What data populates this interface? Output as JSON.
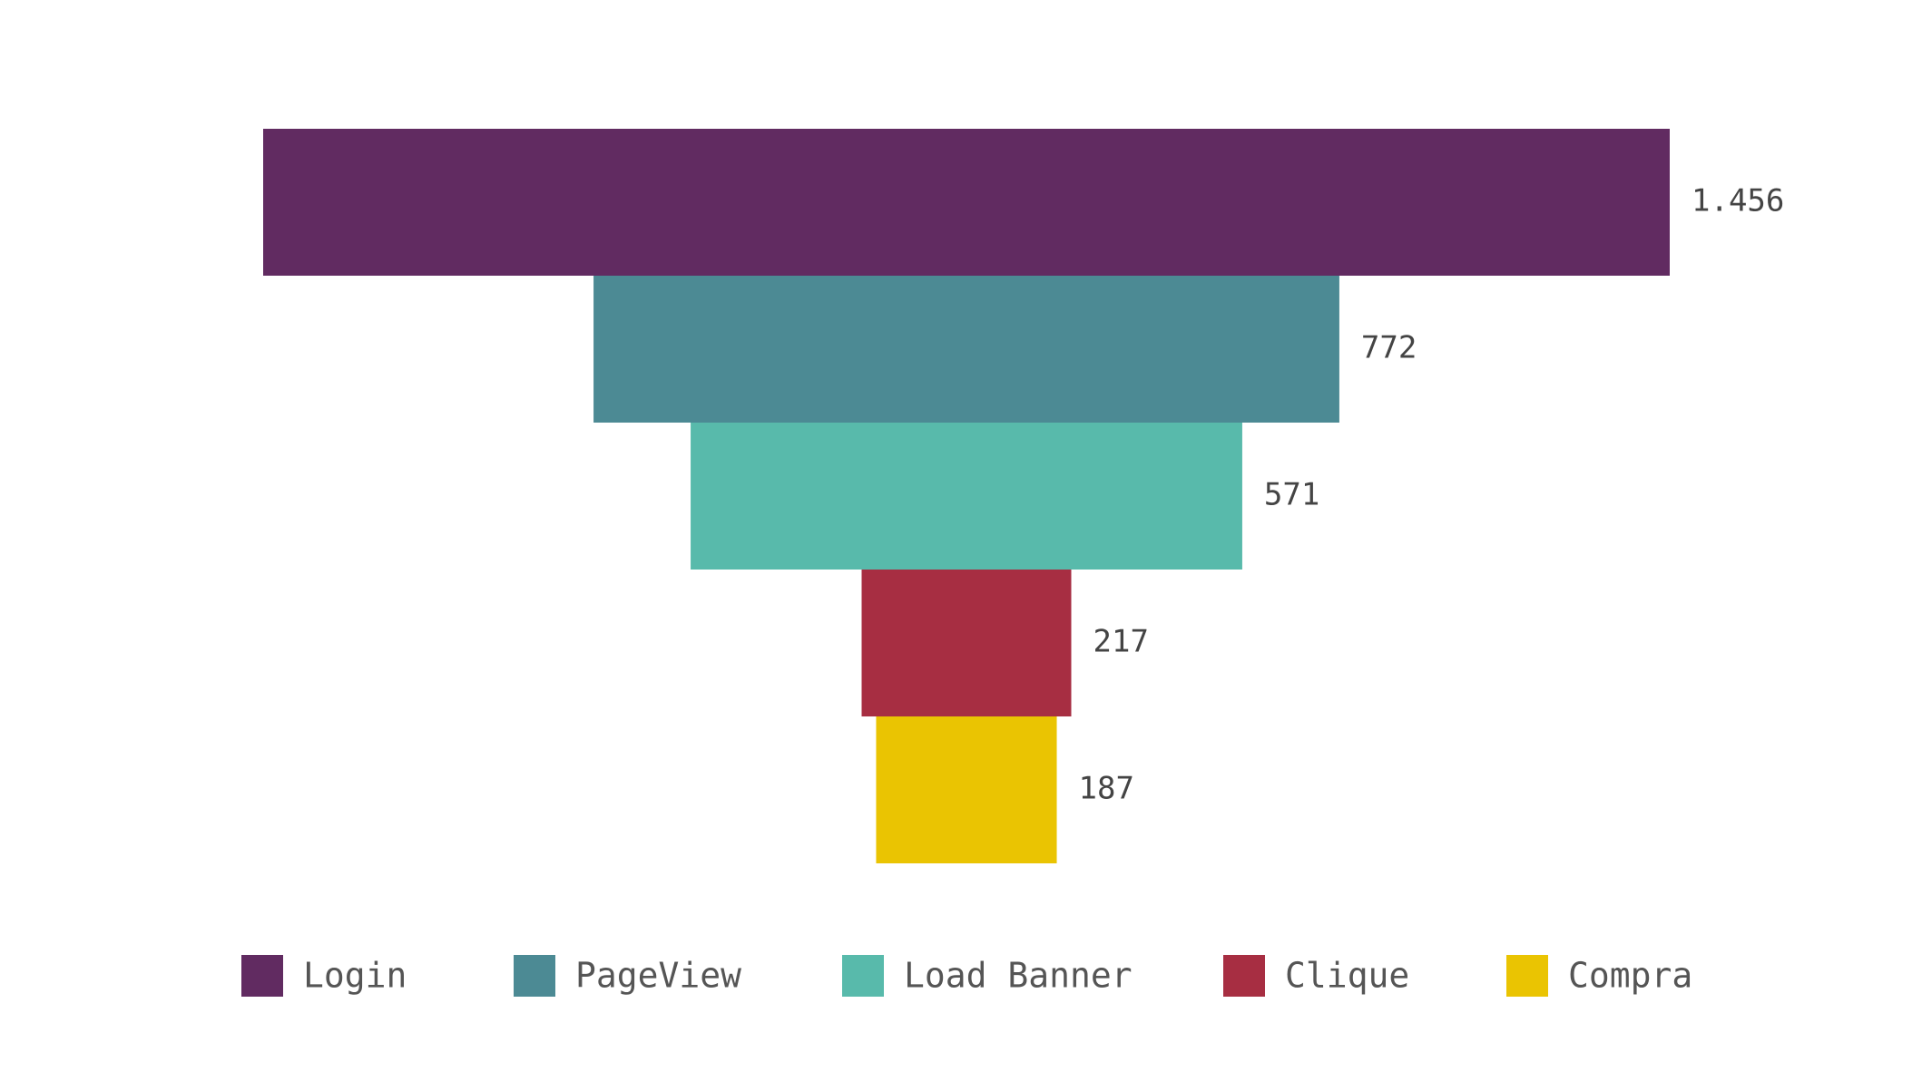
{
  "chart_data": {
    "type": "bar",
    "subtype": "funnel",
    "categories": [
      "Login",
      "PageView",
      "Load Banner",
      "Clique",
      "Compra"
    ],
    "values": [
      1456,
      772,
      571,
      217,
      187
    ],
    "value_labels": [
      "1.456",
      "772",
      "571",
      "217",
      "187"
    ],
    "colors": [
      "#612B61",
      "#4C8A94",
      "#58BAAB",
      "#A72E42",
      "#EAC402"
    ],
    "legend": {
      "position": "bottom",
      "entries": [
        "Login",
        "PageView",
        "Load Banner",
        "Clique",
        "Compra"
      ]
    },
    "grid": false
  }
}
